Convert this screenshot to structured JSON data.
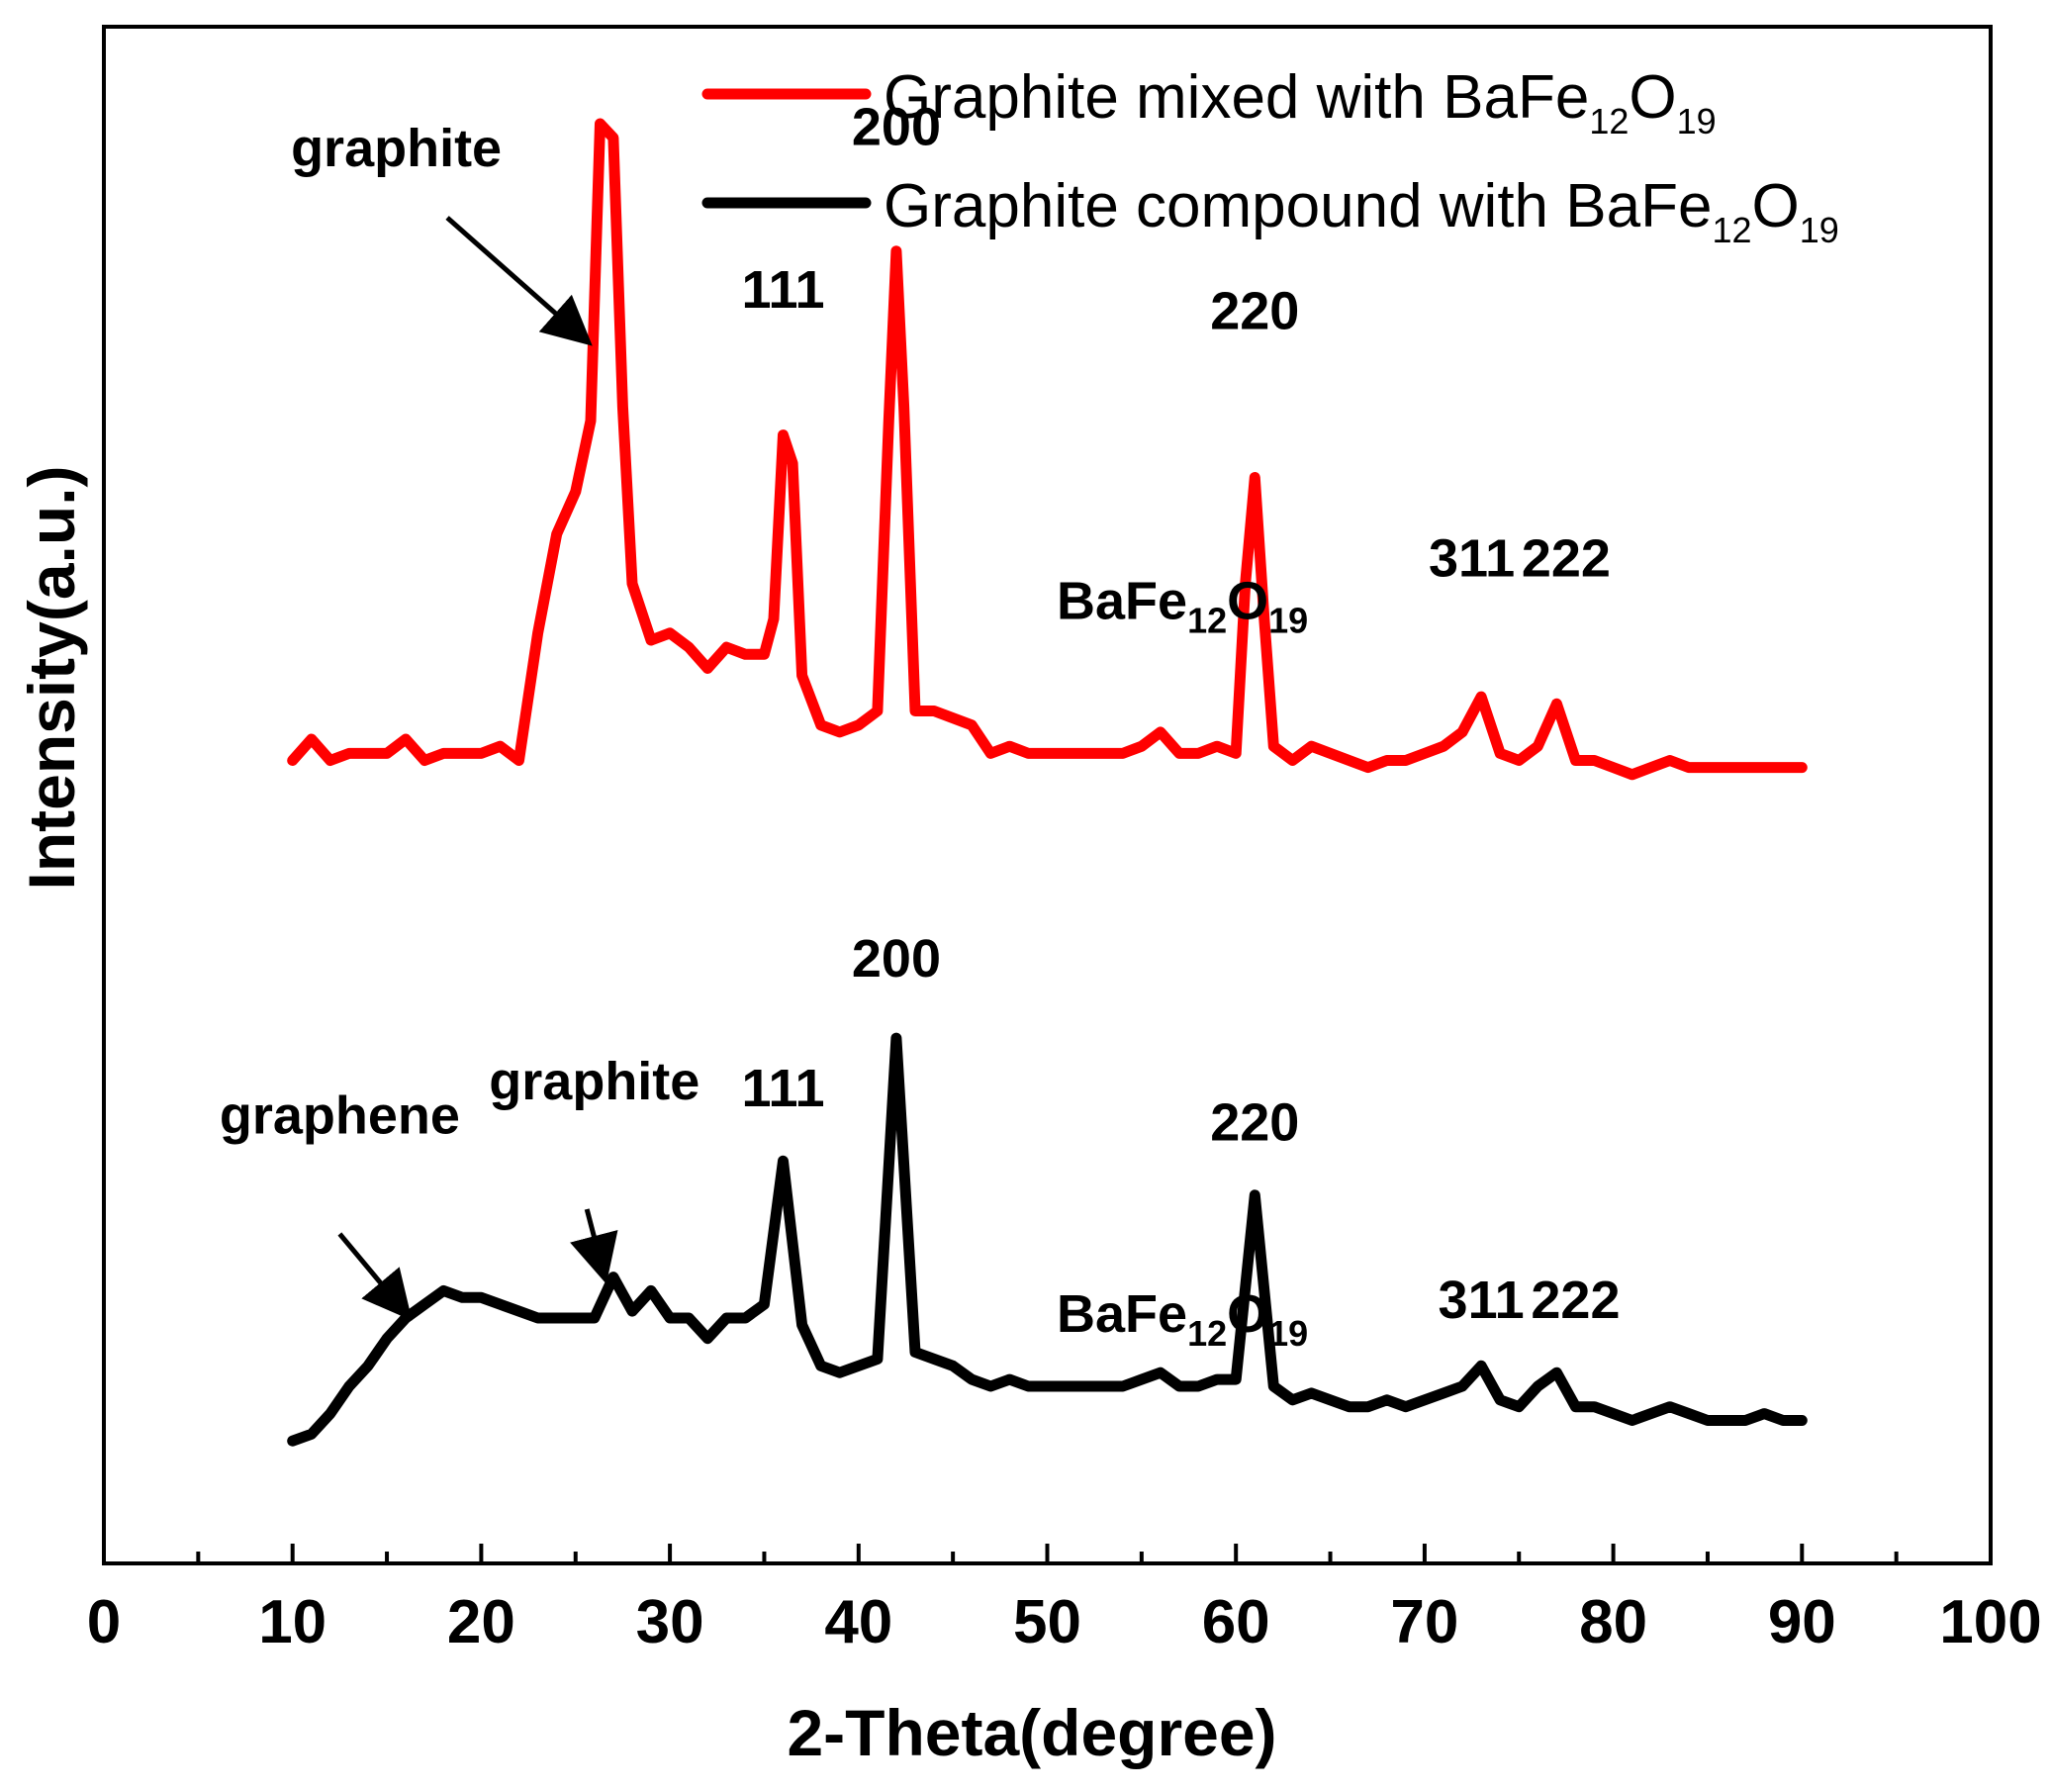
{
  "chart_data": {
    "type": "line",
    "xlabel": "2-Theta(degree)",
    "ylabel": "Intensity(a.u.)",
    "xlim": [
      0,
      100
    ],
    "x_ticks": [
      "0",
      "10",
      "20",
      "30",
      "40",
      "50",
      "60",
      "70",
      "80",
      "90",
      "100"
    ],
    "y_ticks_shown": false,
    "grid": false,
    "legend_position": "top-right",
    "colors": {
      "mixed": "#ff0000",
      "compound": "#000000"
    },
    "legend": [
      {
        "series": "mixed",
        "text": "Graphite mixed with BaFe",
        "sub1": "12",
        "mid": "O",
        "sub2": "19"
      },
      {
        "series": "compound",
        "text": "Graphite compound with BaFe",
        "sub1": "12",
        "mid": "O",
        "sub2": "19"
      }
    ],
    "series": [
      {
        "id": "mixed",
        "color": "#ff0000",
        "points": [
          [
            10,
            10
          ],
          [
            11,
            13
          ],
          [
            12,
            10
          ],
          [
            13,
            11
          ],
          [
            15,
            11
          ],
          [
            16,
            13
          ],
          [
            17,
            10
          ],
          [
            18,
            11
          ],
          [
            20,
            11
          ],
          [
            21,
            12
          ],
          [
            22,
            10
          ],
          [
            23,
            28
          ],
          [
            24,
            42
          ],
          [
            25,
            48
          ],
          [
            25.8,
            58
          ],
          [
            26.3,
            100
          ],
          [
            27,
            98
          ],
          [
            27.5,
            60
          ],
          [
            28,
            35
          ],
          [
            29,
            27
          ],
          [
            30,
            28
          ],
          [
            31,
            26
          ],
          [
            32,
            23
          ],
          [
            33,
            26
          ],
          [
            34,
            25
          ],
          [
            35,
            25
          ],
          [
            35.5,
            30
          ],
          [
            36,
            56
          ],
          [
            36.5,
            52
          ],
          [
            37,
            22
          ],
          [
            38,
            15
          ],
          [
            39,
            14
          ],
          [
            40,
            15
          ],
          [
            41,
            17
          ],
          [
            41.6,
            58
          ],
          [
            42,
            82
          ],
          [
            42.4,
            60
          ],
          [
            43,
            17
          ],
          [
            44,
            17
          ],
          [
            46,
            15
          ],
          [
            47,
            11
          ],
          [
            48,
            12
          ],
          [
            49,
            11
          ],
          [
            50,
            11
          ],
          [
            52,
            11
          ],
          [
            54,
            11
          ],
          [
            55,
            12
          ],
          [
            56,
            14
          ],
          [
            57,
            11
          ],
          [
            58,
            11
          ],
          [
            59,
            12
          ],
          [
            60,
            11
          ],
          [
            60.5,
            35
          ],
          [
            61,
            50
          ],
          [
            61.5,
            30
          ],
          [
            62,
            12
          ],
          [
            63,
            10
          ],
          [
            64,
            12
          ],
          [
            66,
            10
          ],
          [
            67,
            9
          ],
          [
            68,
            10
          ],
          [
            69,
            10
          ],
          [
            70,
            11
          ],
          [
            71,
            12
          ],
          [
            72,
            14
          ],
          [
            73,
            19
          ],
          [
            74,
            11
          ],
          [
            75,
            10
          ],
          [
            76,
            12
          ],
          [
            77,
            18
          ],
          [
            78,
            10
          ],
          [
            79,
            10
          ],
          [
            80,
            9
          ],
          [
            81,
            8
          ],
          [
            82,
            9
          ],
          [
            83,
            10
          ],
          [
            84,
            9
          ],
          [
            85,
            9
          ],
          [
            86,
            9
          ],
          [
            87,
            9
          ],
          [
            88,
            9
          ],
          [
            89,
            9
          ],
          [
            90,
            9
          ]
        ]
      },
      {
        "id": "compound",
        "color": "#000000",
        "points": [
          [
            10,
            2
          ],
          [
            11,
            3
          ],
          [
            12,
            6
          ],
          [
            13,
            10
          ],
          [
            14,
            13
          ],
          [
            15,
            17
          ],
          [
            16,
            20
          ],
          [
            17,
            22
          ],
          [
            18,
            24
          ],
          [
            19,
            23
          ],
          [
            20,
            23
          ],
          [
            21,
            22
          ],
          [
            22,
            21
          ],
          [
            23,
            20
          ],
          [
            24,
            20
          ],
          [
            25,
            20
          ],
          [
            26,
            20
          ],
          [
            27,
            26
          ],
          [
            28,
            21
          ],
          [
            29,
            24
          ],
          [
            30,
            20
          ],
          [
            31,
            20
          ],
          [
            32,
            17
          ],
          [
            33,
            20
          ],
          [
            34,
            20
          ],
          [
            35,
            22
          ],
          [
            36,
            43
          ],
          [
            37,
            19
          ],
          [
            38,
            13
          ],
          [
            39,
            12
          ],
          [
            40,
            13
          ],
          [
            41,
            14
          ],
          [
            42,
            61
          ],
          [
            43,
            15
          ],
          [
            44,
            14
          ],
          [
            45,
            13
          ],
          [
            46,
            11
          ],
          [
            47,
            10
          ],
          [
            48,
            11
          ],
          [
            49,
            10
          ],
          [
            50,
            10
          ],
          [
            52,
            10
          ],
          [
            54,
            10
          ],
          [
            55,
            11
          ],
          [
            56,
            12
          ],
          [
            57,
            10
          ],
          [
            58,
            10
          ],
          [
            59,
            11
          ],
          [
            60,
            11
          ],
          [
            61,
            38
          ],
          [
            62,
            10
          ],
          [
            63,
            8
          ],
          [
            64,
            9
          ],
          [
            65,
            8
          ],
          [
            66,
            7
          ],
          [
            67,
            7
          ],
          [
            68,
            8
          ],
          [
            69,
            7
          ],
          [
            70,
            8
          ],
          [
            71,
            9
          ],
          [
            72,
            10
          ],
          [
            73,
            13
          ],
          [
            74,
            8
          ],
          [
            75,
            7
          ],
          [
            76,
            10
          ],
          [
            77,
            12
          ],
          [
            78,
            7
          ],
          [
            79,
            7
          ],
          [
            80,
            6
          ],
          [
            81,
            5
          ],
          [
            82,
            6
          ],
          [
            83,
            7
          ],
          [
            84,
            6
          ],
          [
            85,
            5
          ],
          [
            86,
            5
          ],
          [
            87,
            5
          ],
          [
            88,
            6
          ],
          [
            89,
            5
          ],
          [
            90,
            5
          ]
        ]
      }
    ],
    "annotations": [
      {
        "text": "graphite",
        "x": 15.5,
        "series": "mixed",
        "y": 94
      },
      {
        "text": "111",
        "x": 36,
        "series": "mixed",
        "y": 74
      },
      {
        "text": "200",
        "x": 42,
        "series": "mixed",
        "y": 97
      },
      {
        "text": "220",
        "x": 61,
        "series": "mixed",
        "y": 71
      },
      {
        "text": "311",
        "x": 72.5,
        "series": "mixed",
        "y": 36
      },
      {
        "text": "222",
        "x": 77.5,
        "series": "mixed",
        "y": 36
      },
      {
        "text": "graphene",
        "x": 12.5,
        "series": "compound",
        "y": 47
      },
      {
        "text": "graphite",
        "x": 26,
        "series": "compound",
        "y": 52
      },
      {
        "text": "111",
        "x": 36,
        "series": "compound",
        "y": 51
      },
      {
        "text": "200",
        "x": 42,
        "series": "compound",
        "y": 70
      },
      {
        "text": "220",
        "x": 61,
        "series": "compound",
        "y": 46
      },
      {
        "text": "311",
        "x": 73,
        "series": "compound",
        "y": 20
      },
      {
        "text": "222",
        "x": 78,
        "series": "compound",
        "y": 20
      }
    ],
    "phase_labels": [
      {
        "base": "BaFe",
        "sub1": "12",
        "mid": "O",
        "sub2": "19",
        "series": "mixed",
        "x": 50.5,
        "y": 30
      },
      {
        "base": "BaFe",
        "sub1": "12",
        "mid": "O",
        "sub2": "19",
        "series": "compound",
        "x": 50.5,
        "y": 18
      }
    ]
  }
}
